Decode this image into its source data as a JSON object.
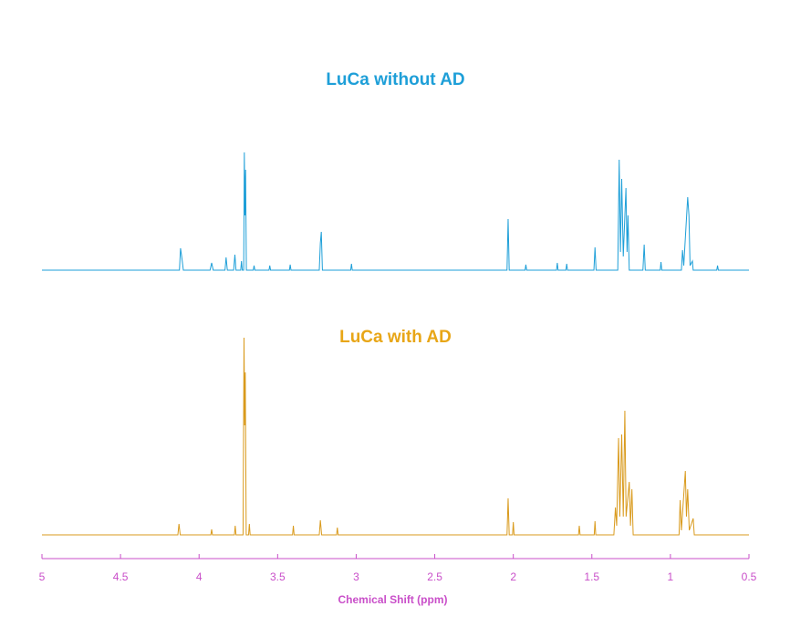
{
  "chart_data": [
    {
      "type": "line",
      "title": "LuCa without AD",
      "color": "#1e9fd8",
      "xlim": [
        5,
        0.5
      ],
      "ylim": [
        0,
        130
      ],
      "series": [
        {
          "color": "#1e9fd8",
          "x": [
            5,
            4.125,
            4.118,
            4.11,
            4.1,
            3.93,
            3.92,
            3.91,
            3.835,
            3.828,
            3.82,
            3.78,
            3.772,
            3.765,
            3.735,
            3.73,
            3.725,
            3.716,
            3.712,
            3.708,
            3.704,
            3.699,
            3.655,
            3.65,
            3.645,
            3.555,
            3.55,
            3.545,
            3.425,
            3.42,
            3.415,
            3.235,
            3.228,
            3.222,
            3.215,
            3.035,
            3.03,
            3.025,
            2.04,
            2.033,
            2.026,
            1.925,
            1.92,
            1.915,
            1.725,
            1.72,
            1.715,
            1.665,
            1.66,
            1.655,
            1.487,
            1.48,
            1.473,
            1.335,
            1.326,
            1.318,
            1.31,
            1.3,
            1.283,
            1.276,
            1.27,
            1.262,
            1.175,
            1.167,
            1.16,
            1.065,
            1.06,
            1.055,
            0.93,
            0.923,
            0.915,
            0.89,
            0.882,
            0.875,
            0.86,
            0.855,
            0.705,
            0.7,
            0.695,
            0.5
          ],
          "values": [
            0,
            0,
            24,
            14,
            0,
            0,
            8,
            0,
            0,
            14,
            0,
            0,
            17,
            0,
            0,
            10,
            0,
            0,
            129,
            60,
            110,
            0,
            0,
            5,
            0,
            0,
            5,
            0,
            0,
            6,
            0,
            0,
            30,
            42,
            0,
            0,
            7,
            0,
            0,
            56,
            0,
            0,
            6,
            0,
            0,
            8,
            0,
            0,
            7,
            0,
            0,
            25,
            0,
            0,
            121,
            20,
            100,
            15,
            90,
            20,
            60,
            0,
            0,
            28,
            0,
            0,
            9,
            0,
            0,
            22,
            5,
            80,
            60,
            5,
            10,
            0,
            0,
            5,
            0,
            0
          ]
        }
      ]
    },
    {
      "type": "line",
      "title": "LuCa with AD",
      "color": "#e8a617",
      "xlim": [
        5,
        0.5
      ],
      "ylim": [
        0,
        220
      ],
      "xticks": [
        5,
        4.5,
        4,
        3.5,
        3,
        2.5,
        2,
        1.5,
        1,
        0.5
      ],
      "xlabel": "Chemical Shift (ppm)",
      "axis_color": "#c94fc9",
      "series": [
        {
          "color": "#d99a1c",
          "x": [
            5,
            4.135,
            4.128,
            4.12,
            3.925,
            3.92,
            3.915,
            3.775,
            3.77,
            3.765,
            3.72,
            3.714,
            3.71,
            3.706,
            3.7,
            3.685,
            3.68,
            3.675,
            3.405,
            3.4,
            3.395,
            3.235,
            3.228,
            3.22,
            3.125,
            3.12,
            3.115,
            2.04,
            2.033,
            2.026,
            2.005,
            2.0,
            1.995,
            1.585,
            1.58,
            1.575,
            1.485,
            1.48,
            1.475,
            1.36,
            1.35,
            1.342,
            1.33,
            1.322,
            1.31,
            1.3,
            1.29,
            1.282,
            1.262,
            1.254,
            1.245,
            1.237,
            0.945,
            0.938,
            0.93,
            0.905,
            0.898,
            0.89,
            0.88,
            0.855,
            0.848,
            0.5
          ],
          "values": [
            0,
            0,
            12,
            0,
            0,
            6,
            0,
            0,
            10,
            0,
            0,
            216,
            120,
            178,
            0,
            0,
            12,
            0,
            0,
            10,
            0,
            0,
            16,
            0,
            0,
            8,
            0,
            0,
            40,
            0,
            0,
            14,
            0,
            0,
            10,
            0,
            0,
            15,
            0,
            0,
            30,
            10,
            106,
            20,
            110,
            20,
            136,
            20,
            58,
            10,
            50,
            0,
            0,
            38,
            5,
            70,
            20,
            50,
            5,
            18,
            0,
            0
          ]
        }
      ]
    }
  ]
}
